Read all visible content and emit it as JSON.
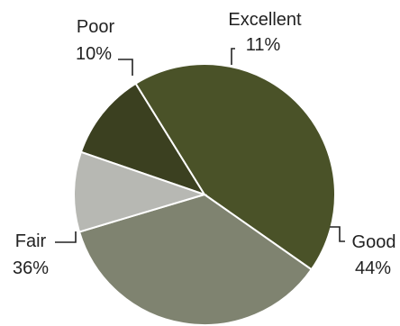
{
  "chart_data": {
    "type": "pie",
    "slices": [
      {
        "label": "Excellent",
        "value": 11,
        "value_text": "11%",
        "color": "#3b4020"
      },
      {
        "label": "Good",
        "value": 44,
        "value_text": "44%",
        "color": "#4a5228"
      },
      {
        "label": "Fair",
        "value": 36,
        "value_text": "36%",
        "color": "#7f8370"
      },
      {
        "label": "Poor",
        "value": 10,
        "value_text": "10%",
        "color": "#b7b8b3"
      }
    ]
  }
}
